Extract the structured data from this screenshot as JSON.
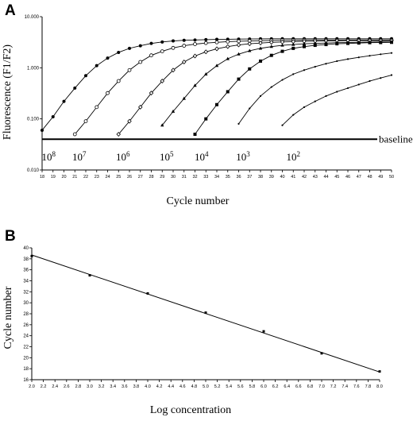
{
  "chart_data": [
    {
      "panel": "A",
      "type": "line",
      "xlabel": "Cycle number",
      "ylabel": "Fluorescence (F1/F2)",
      "y_scale": "log",
      "xlim": [
        18,
        50
      ],
      "ylim": [
        0.01,
        10
      ],
      "x_ticks": [
        18,
        19,
        20,
        21,
        22,
        23,
        24,
        25,
        26,
        27,
        28,
        29,
        30,
        31,
        32,
        33,
        34,
        35,
        36,
        37,
        38,
        39,
        40,
        41,
        42,
        43,
        44,
        45,
        46,
        47,
        48,
        49,
        50
      ],
      "y_ticks": [
        {
          "value": 0.01,
          "label": "0.010"
        },
        {
          "value": 0.1,
          "label": "0.100"
        },
        {
          "value": 1,
          "label": "1.000"
        },
        {
          "value": 10,
          "label": "10.000"
        }
      ],
      "baseline": {
        "value": 0.04,
        "label": "baseline"
      },
      "concentration_labels": [
        {
          "base": "10",
          "exp": "8",
          "x": 18.4
        },
        {
          "base": "10",
          "exp": "7",
          "x": 21.2
        },
        {
          "base": "10",
          "exp": "6",
          "x": 25.2
        },
        {
          "base": "10",
          "exp": "5",
          "x": 29.2
        },
        {
          "base": "10",
          "exp": "4",
          "x": 32.4
        },
        {
          "base": "10",
          "exp": "3",
          "x": 36.2
        },
        {
          "base": "10",
          "exp": "2",
          "x": 40.8
        }
      ],
      "series": [
        {
          "marker": "filled-circle",
          "start": 18,
          "x": [
            18,
            19,
            20,
            21,
            22,
            23,
            24,
            25,
            26,
            27,
            28,
            29,
            30,
            31,
            32,
            33,
            34,
            35,
            36,
            37,
            38,
            39,
            40,
            41,
            42,
            43,
            44,
            45,
            46,
            47,
            48,
            49,
            50
          ],
          "y": [
            0.06,
            0.11,
            0.22,
            0.4,
            0.7,
            1.1,
            1.55,
            2.0,
            2.4,
            2.7,
            3.0,
            3.2,
            3.35,
            3.45,
            3.5,
            3.55,
            3.6,
            3.62,
            3.64,
            3.66,
            3.68,
            3.69,
            3.7,
            3.7,
            3.7,
            3.7,
            3.7,
            3.7,
            3.7,
            3.7,
            3.7,
            3.7,
            3.7
          ]
        },
        {
          "marker": "open-circle",
          "start": 21,
          "x": [
            21,
            22,
            23,
            24,
            25,
            26,
            27,
            28,
            29,
            30,
            31,
            32,
            33,
            34,
            35,
            36,
            37,
            38,
            39,
            40,
            41,
            42,
            43,
            44,
            45,
            46,
            47,
            48,
            49,
            50
          ],
          "y": [
            0.05,
            0.09,
            0.17,
            0.32,
            0.55,
            0.9,
            1.3,
            1.75,
            2.1,
            2.45,
            2.7,
            2.9,
            3.05,
            3.15,
            3.25,
            3.3,
            3.35,
            3.4,
            3.42,
            3.45,
            3.47,
            3.5,
            3.5,
            3.5,
            3.5,
            3.5,
            3.5,
            3.5,
            3.5,
            3.5
          ]
        },
        {
          "marker": "open-diamond",
          "start": 25,
          "x": [
            25,
            26,
            27,
            28,
            29,
            30,
            31,
            32,
            33,
            34,
            35,
            36,
            37,
            38,
            39,
            40,
            41,
            42,
            43,
            44,
            45,
            46,
            47,
            48,
            49,
            50
          ],
          "y": [
            0.05,
            0.09,
            0.17,
            0.32,
            0.55,
            0.9,
            1.3,
            1.7,
            2.05,
            2.35,
            2.6,
            2.8,
            2.95,
            3.05,
            3.15,
            3.2,
            3.25,
            3.3,
            3.32,
            3.35,
            3.37,
            3.4,
            3.4,
            3.4,
            3.4,
            3.4
          ]
        },
        {
          "marker": "filled-triangle",
          "start": 29,
          "x": [
            29,
            30,
            31,
            32,
            33,
            34,
            35,
            36,
            37,
            38,
            39,
            40,
            41,
            42,
            43,
            44,
            45,
            46,
            47,
            48,
            49,
            50
          ],
          "y": [
            0.075,
            0.14,
            0.25,
            0.45,
            0.75,
            1.1,
            1.5,
            1.85,
            2.15,
            2.4,
            2.6,
            2.75,
            2.85,
            2.95,
            3.0,
            3.05,
            3.1,
            3.12,
            3.15,
            3.17,
            3.2,
            3.2
          ]
        },
        {
          "marker": "filled-square",
          "start": 32,
          "x": [
            32,
            33,
            34,
            35,
            36,
            37,
            38,
            39,
            40,
            41,
            42,
            43,
            44,
            45,
            46,
            47,
            48,
            49,
            50
          ],
          "y": [
            0.05,
            0.1,
            0.19,
            0.34,
            0.6,
            0.95,
            1.35,
            1.75,
            2.1,
            2.4,
            2.6,
            2.75,
            2.85,
            2.95,
            3.0,
            3.05,
            3.1,
            3.12,
            3.15
          ]
        },
        {
          "marker": "small-dot",
          "start": 36,
          "x": [
            36,
            37,
            38,
            39,
            40,
            41,
            42,
            43,
            44,
            45,
            46,
            47,
            48,
            49,
            50
          ],
          "y": [
            0.08,
            0.16,
            0.28,
            0.42,
            0.58,
            0.75,
            0.9,
            1.05,
            1.2,
            1.35,
            1.48,
            1.6,
            1.72,
            1.84,
            1.95
          ]
        },
        {
          "marker": "small-dot",
          "start": 40,
          "x": [
            40,
            41,
            42,
            43,
            44,
            45,
            46,
            47,
            48,
            49,
            50
          ],
          "y": [
            0.075,
            0.12,
            0.17,
            0.22,
            0.28,
            0.34,
            0.4,
            0.47,
            0.55,
            0.63,
            0.72
          ]
        }
      ]
    },
    {
      "panel": "B",
      "type": "scatter",
      "xlabel": "Log concentration",
      "ylabel": "Cycle number",
      "xlim": [
        2.0,
        8.0
      ],
      "ylim": [
        16,
        40
      ],
      "x_ticks": [
        "2.0",
        "2.2",
        "2.4",
        "2.6",
        "2.8",
        "3.0",
        "3.2",
        "3.4",
        "3.6",
        "3.8",
        "4.0",
        "4.2",
        "4.4",
        "4.6",
        "4.8",
        "5.0",
        "5.2",
        "5.4",
        "5.6",
        "5.8",
        "6.0",
        "6.2",
        "6.4",
        "6.6",
        "6.8",
        "7.0",
        "7.2",
        "7.4",
        "7.6",
        "7.8",
        "8.0"
      ],
      "y_ticks": [
        "16",
        "18",
        "20",
        "22",
        "24",
        "26",
        "28",
        "30",
        "32",
        "34",
        "36",
        "38",
        "40"
      ],
      "points": {
        "x": [
          2.0,
          3.0,
          4.0,
          5.0,
          6.0,
          7.0,
          8.0
        ],
        "y": [
          38.5,
          35.0,
          31.7,
          28.2,
          24.8,
          20.8,
          17.5
        ]
      },
      "fit_line": {
        "x": [
          2.0,
          8.0
        ],
        "y": [
          38.7,
          17.4
        ]
      }
    }
  ]
}
